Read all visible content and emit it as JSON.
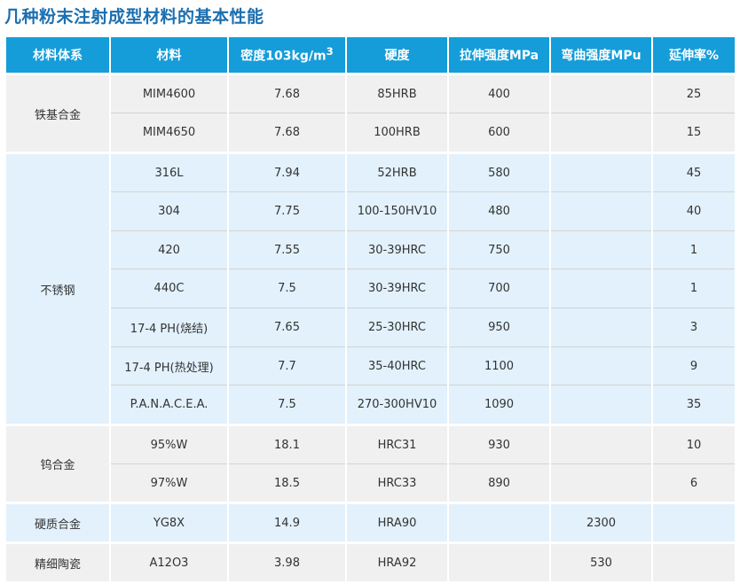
{
  "title": "几种粉末注射成型材料的基本性能",
  "headers": {
    "system": "材料体系",
    "material": "材料",
    "density_prefix": "密度103kg/m",
    "density_sup": "3",
    "hardness": "硬度",
    "tensile": "拉伸强度MPa",
    "bending": "弯曲强度MPu",
    "elongation": "延伸率%"
  },
  "groups": [
    {
      "name": "铁基合金",
      "rows": [
        {
          "material": "MIM4600",
          "density": "7.68",
          "hardness": "85HRB",
          "tensile": "400",
          "bending": "",
          "elongation": "25"
        },
        {
          "material": "MIM4650",
          "density": "7.68",
          "hardness": "100HRB",
          "tensile": "600",
          "bending": "",
          "elongation": "15"
        }
      ]
    },
    {
      "name": "不锈钢",
      "rows": [
        {
          "material": "316L",
          "density": "7.94",
          "hardness": "52HRB",
          "tensile": "580",
          "bending": "",
          "elongation": "45"
        },
        {
          "material": "304",
          "density": "7.75",
          "hardness": "100-150HV10",
          "tensile": "480",
          "bending": "",
          "elongation": "40"
        },
        {
          "material": "420",
          "density": "7.55",
          "hardness": "30-39HRC",
          "tensile": "750",
          "bending": "",
          "elongation": "1"
        },
        {
          "material": "440C",
          "density": "7.5",
          "hardness": "30-39HRC",
          "tensile": "700",
          "bending": "",
          "elongation": "1"
        },
        {
          "material": "17-4 PH(烧结)",
          "density": "7.65",
          "hardness": "25-30HRC",
          "tensile": "950",
          "bending": "",
          "elongation": "3"
        },
        {
          "material": "17-4 PH(热处理)",
          "density": "7.7",
          "hardness": "35-40HRC",
          "tensile": "1100",
          "bending": "",
          "elongation": "9"
        },
        {
          "material": "P.A.N.A.C.E.A.",
          "density": "7.5",
          "hardness": "270-300HV10",
          "tensile": "1090",
          "bending": "",
          "elongation": "35"
        }
      ]
    },
    {
      "name": "钨合金",
      "rows": [
        {
          "material": "95%W",
          "density": "18.1",
          "hardness": "HRC31",
          "tensile": "930",
          "bending": "",
          "elongation": "10"
        },
        {
          "material": "97%W",
          "density": "18.5",
          "hardness": "HRC33",
          "tensile": "890",
          "bending": "",
          "elongation": "6"
        }
      ]
    },
    {
      "name": "硬质合金",
      "rows": [
        {
          "material": "YG8X",
          "density": "14.9",
          "hardness": "HRA90",
          "tensile": "",
          "bending": "2300",
          "elongation": ""
        }
      ]
    },
    {
      "name": "精细陶瓷",
      "rows": [
        {
          "material": "A12O3",
          "density": "3.98",
          "hardness": "HRA92",
          "tensile": "",
          "bending": "530",
          "elongation": ""
        }
      ]
    }
  ],
  "colors": {
    "header_bg": "#159dd9",
    "title": "#1b6fb0",
    "group_bg_alt": [
      "#f0f0f0",
      "#e2f1fb"
    ]
  }
}
